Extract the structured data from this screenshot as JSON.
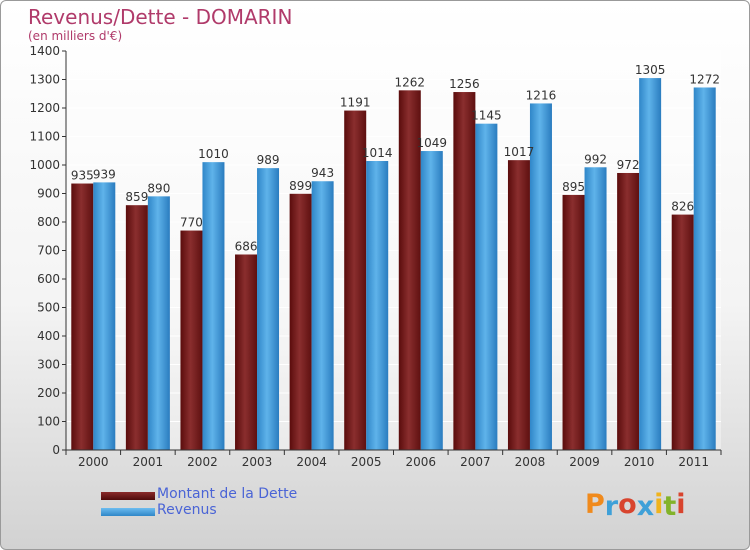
{
  "title": "Revenus/Dette - DOMARIN",
  "subtitle": "(en milliers d'€)",
  "legend": {
    "debt_label": "Montant de la Dette",
    "revenue_label": "Revenus"
  },
  "logo": {
    "letters": [
      "P",
      "r",
      "o",
      "x",
      "i",
      "t",
      "i"
    ],
    "colors": [
      "#f08a1c",
      "#3ea0d8",
      "#d8442e",
      "#3ea0d8",
      "#f0b31c",
      "#82b32a",
      "#d8442e"
    ]
  },
  "colors": {
    "debt": "#7a1f1f",
    "revenue": "#4aa3e0",
    "title": "#b03a6a",
    "legend_text": "#4a64d6"
  },
  "chart_data": {
    "type": "bar",
    "categories": [
      "2000",
      "2001",
      "2002",
      "2003",
      "2004",
      "2005",
      "2006",
      "2007",
      "2008",
      "2009",
      "2010",
      "2011"
    ],
    "series": [
      {
        "name": "Montant de la Dette",
        "values": [
          935,
          859,
          770,
          686,
          899,
          1191,
          1262,
          1256,
          1017,
          895,
          972,
          826
        ]
      },
      {
        "name": "Revenus",
        "values": [
          939,
          890,
          1010,
          989,
          943,
          1014,
          1049,
          1145,
          1216,
          992,
          1305,
          1272
        ]
      }
    ],
    "ylim": [
      0,
      1400
    ],
    "yticks": [
      0,
      100,
      200,
      300,
      400,
      500,
      600,
      700,
      800,
      900,
      1000,
      1100,
      1200,
      1300,
      1400
    ],
    "grid": true
  }
}
